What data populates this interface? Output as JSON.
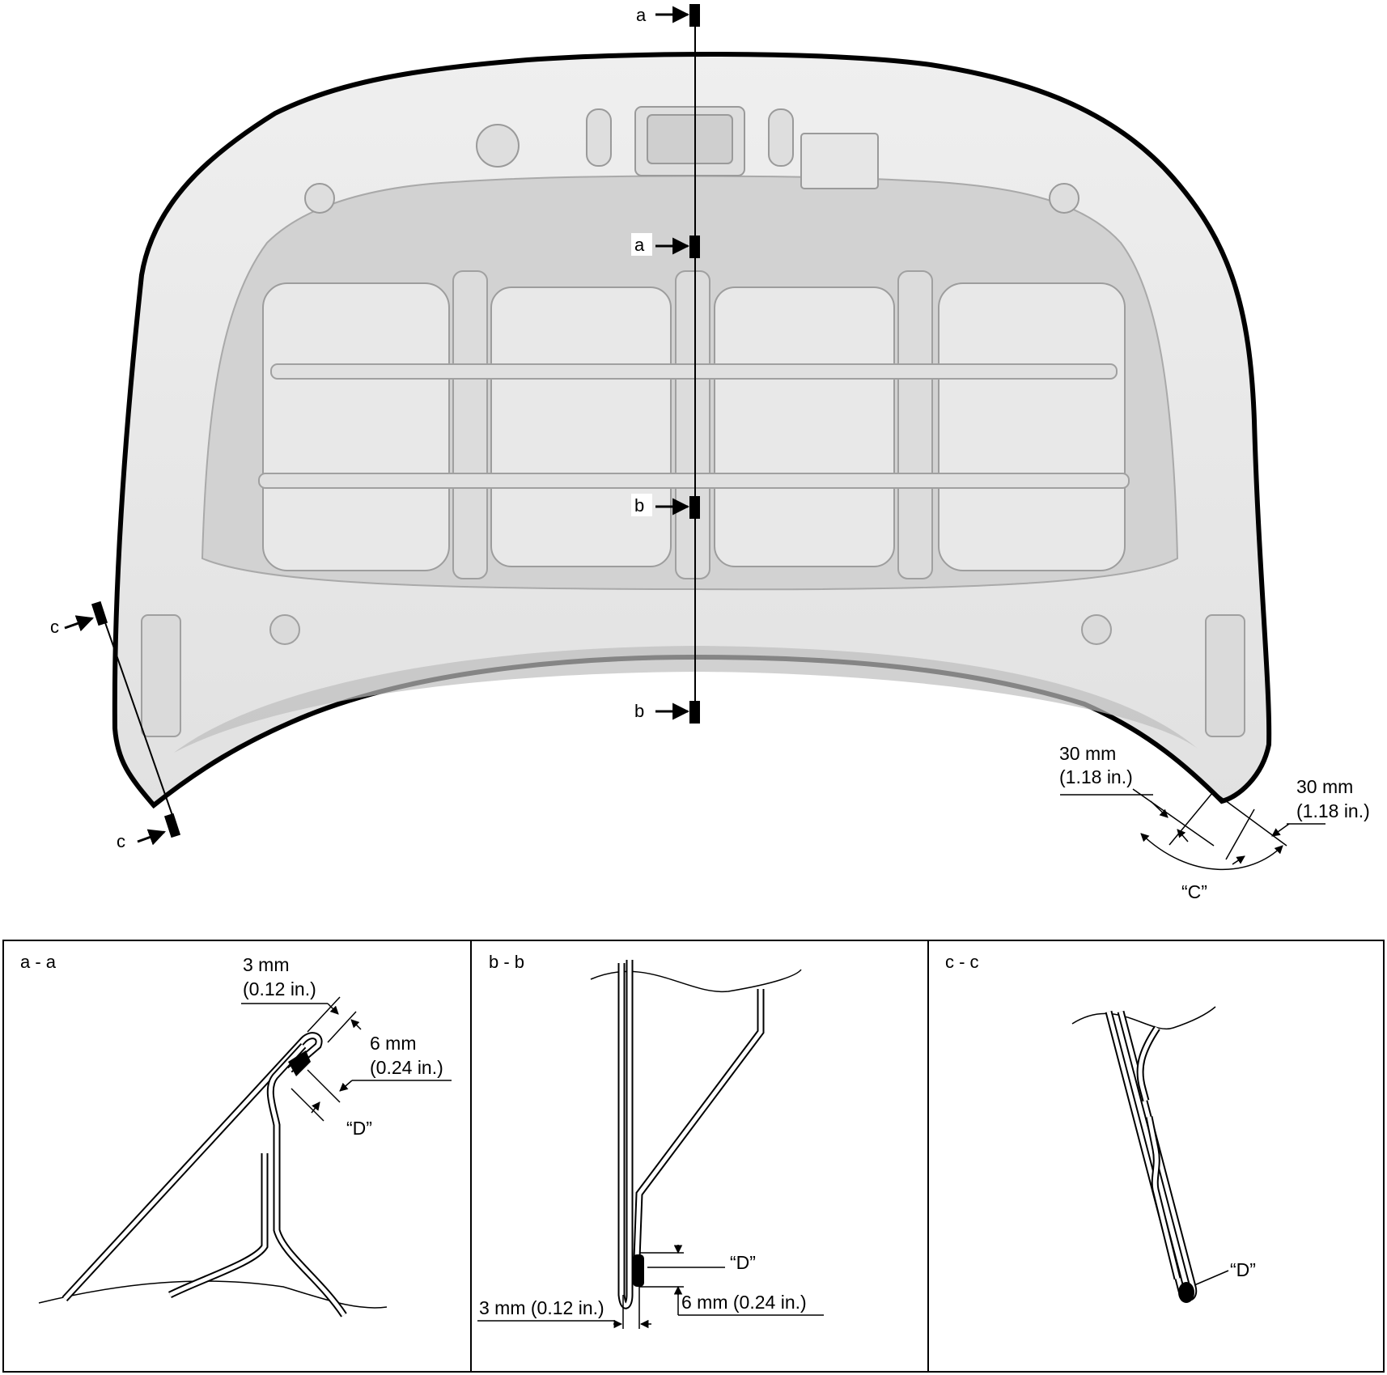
{
  "colors": {
    "ink": "#000000",
    "panel": "#e6e6e6",
    "panel_light": "#f1f1f1",
    "panel_dark": "#c9c9c9",
    "background": "#ffffff"
  },
  "hood": {
    "section_markers": {
      "a": "a",
      "b": "b",
      "c": "c"
    },
    "corner_detail": {
      "dim1_value": "30 mm",
      "dim1_imperial": "(1.18 in.)",
      "dim2_value": "30 mm",
      "dim2_imperial": "(1.18 in.)",
      "area_label": "“C”"
    }
  },
  "sections": [
    {
      "title": "a - a",
      "dim1_value": "3 mm",
      "dim1_imperial": "(0.12 in.)",
      "dim2_value": "6 mm",
      "dim2_imperial": "(0.24 in.)",
      "bead_label": "“D”"
    },
    {
      "title": "b - b",
      "bead_label": "“D”",
      "dim1": "3 mm (0.12 in.)",
      "dim2": "6 mm (0.24 in.)"
    },
    {
      "title": "c - c",
      "bead_label": "“D”"
    }
  ]
}
